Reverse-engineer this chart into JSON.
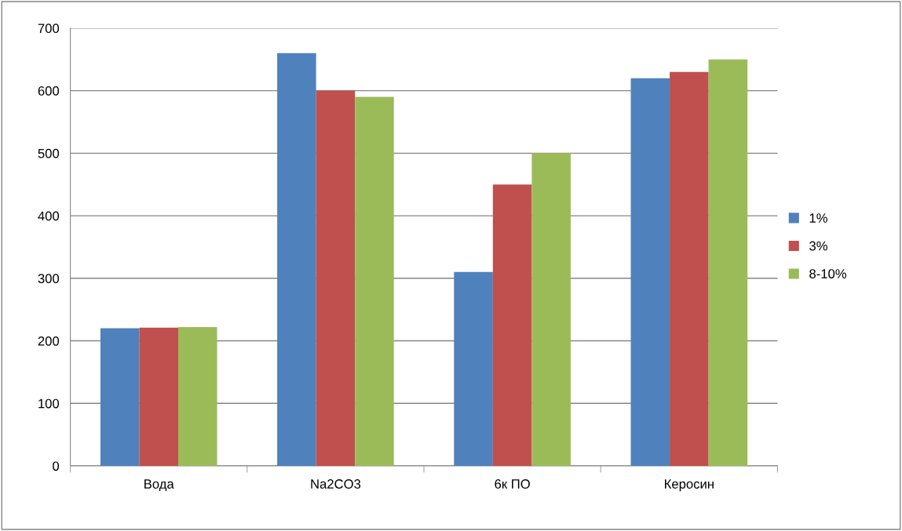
{
  "chart_data": {
    "type": "bar",
    "categories": [
      "Вода",
      "Na2CO3",
      "6к ПО",
      "Керосин"
    ],
    "series": [
      {
        "name": "1%",
        "color": "#4f81bd",
        "values": [
          220,
          660,
          310,
          620
        ]
      },
      {
        "name": "3%",
        "color": "#c0504d",
        "values": [
          221,
          600,
          450,
          630
        ]
      },
      {
        "name": "8-10%",
        "color": "#9bbb59",
        "values": [
          222,
          590,
          500,
          650
        ]
      }
    ],
    "ylim": [
      0,
      700
    ],
    "yticks": [
      0,
      100,
      200,
      300,
      400,
      500,
      600,
      700
    ],
    "grid": "y",
    "legend": "right"
  }
}
